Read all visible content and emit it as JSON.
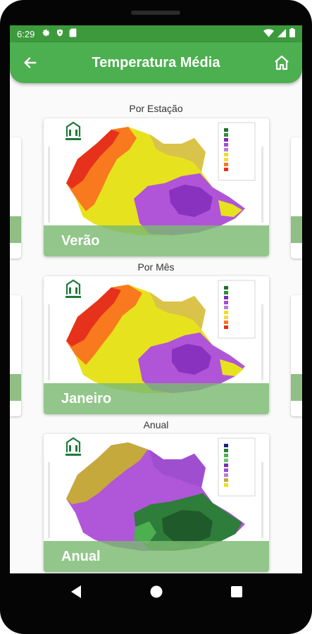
{
  "status_bar": {
    "time": "6:29",
    "icons": [
      "gear-icon",
      "shield-icon",
      "sd-card-icon",
      "wifi-icon",
      "signal-icon",
      "battery-icon"
    ]
  },
  "app_bar": {
    "title": "Temperatura Média",
    "back_icon": "arrow-left-icon",
    "home_icon": "home-icon"
  },
  "sections": [
    {
      "label": "Por Estação",
      "card_title": "Verão"
    },
    {
      "label": "Por Mês",
      "card_title": "Janeiro"
    },
    {
      "label": "Anual",
      "card_title": "Anual"
    }
  ],
  "colors": {
    "status_bar": "#3c9a3c",
    "app_bar": "#4caf50",
    "overlay": "#7aba70"
  },
  "navigation_bar": {
    "icons": [
      "back-triangle-icon",
      "home-circle-icon",
      "recents-square-icon"
    ]
  }
}
